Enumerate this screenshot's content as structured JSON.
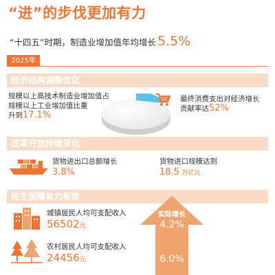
{
  "header": {
    "title": "“进”的步伐更加有力",
    "subtitle": "“十四五”时期，制造业增加值年均增长",
    "subtitle_value": "5.5%"
  },
  "year_tag": "2025年",
  "section1": {
    "title": "经济结构调整优化",
    "hitech_line1": "规模以上高技术制造业增加值占",
    "hitech_line2": "规模以上工业增加值比重",
    "hitech_prefix": "升到",
    "hitech_value": "17.1%",
    "consumption_line1": "最终消费支出对经济增长",
    "consumption_prefix": "贡献率达",
    "consumption_value": "52%"
  },
  "section2": {
    "title": "改革开放持续深化",
    "trade_label": "货物进出口总额增长",
    "trade_value": "3.8%",
    "import_label": "货物进口规模达到",
    "import_value": "18.5",
    "import_unit": "万亿元"
  },
  "section3": {
    "title": "民生保障有力有效",
    "urban_label": "城镇居民人均可支配收入",
    "urban_value": "56502",
    "urban_unit": "元",
    "rural_label": "农村居民人均可支配收入",
    "rural_value": "24456",
    "rural_unit": "元",
    "arrow_label": "实际增长",
    "urban_growth": "4.2%",
    "rural_growth": "6.0%"
  },
  "chart_data": {
    "type": "pie",
    "title": "",
    "slices": [
      {
        "label": "规模以上高技术制造业增加值",
        "value": 17.1,
        "color": "#59c3e6"
      },
      {
        "label": "",
        "value": 82.9,
        "color": "#e8e8e8"
      }
    ]
  },
  "colors": {
    "accent": "#ee7433",
    "band": "#f8dcc8",
    "arrow": "#f1a36e",
    "blue_slice": "#59c3e6"
  }
}
